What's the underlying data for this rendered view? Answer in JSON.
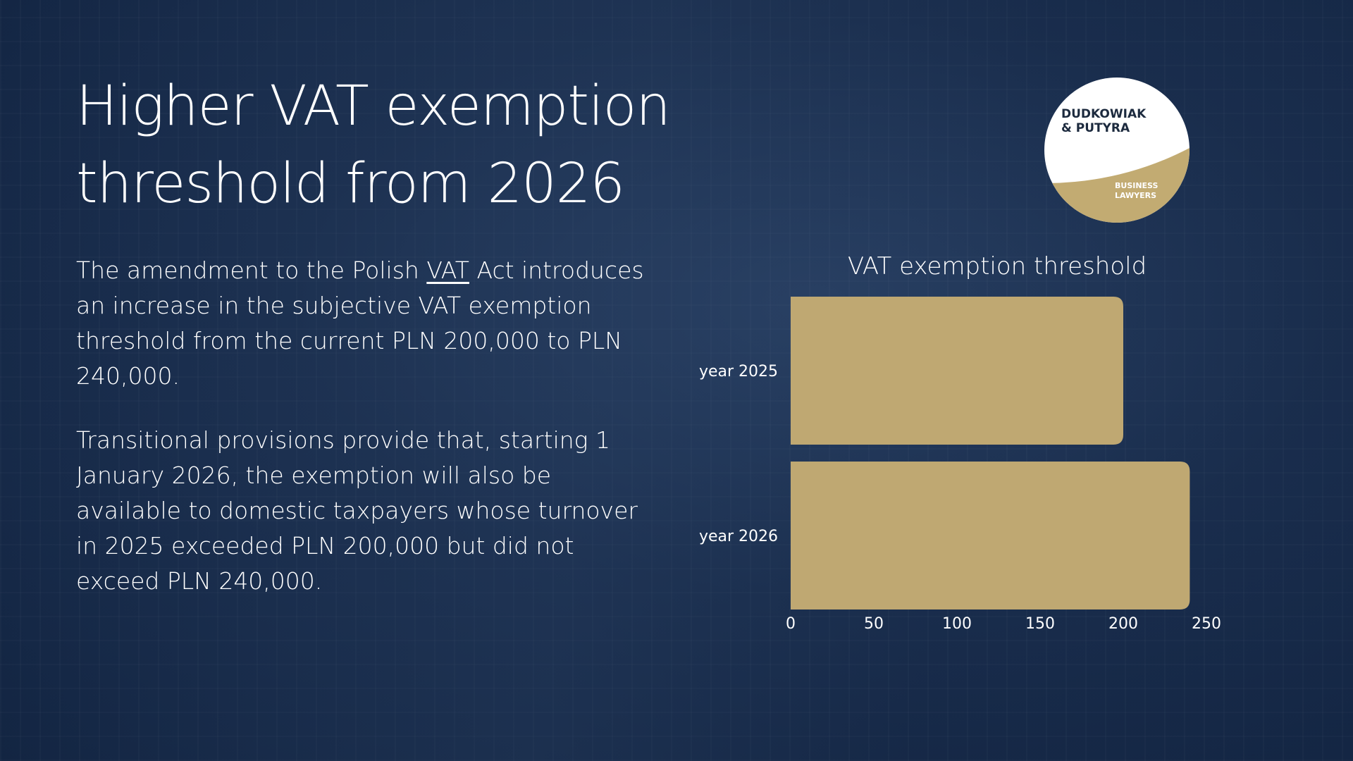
{
  "title_lines": [
    "Higher VAT exemption",
    "threshold from 2026"
  ],
  "paragraph1": {
    "before": "The amendment to the Polish ",
    "link": "VAT",
    "after": " Act introduces an increase in the subjective VAT exemption threshold from the current PLN 200,000 to PLN 240,000."
  },
  "paragraph2": "Transitional provisions provide that, starting 1 January 2026, the exemption will also be available to domestic taxpayers whose turnover in 2025 exceeded PLN 200,000 but did not exceed PLN 240,000.",
  "logo": {
    "line1": "DUDKOWIAK",
    "line2": "& PUTYRA",
    "line3": "BUSINESS",
    "line4": "LAWYERS"
  },
  "colors": {
    "bar": "#bfa872",
    "background": "#1a2e4e",
    "logo_gold": "#c2ab72",
    "logo_text": "#1c2a3e"
  },
  "chart_data": {
    "type": "bar",
    "orientation": "horizontal",
    "title": "VAT exemption threshold",
    "categories": [
      "year 2025",
      "year 2026"
    ],
    "values": [
      200,
      240
    ],
    "xlim": [
      0,
      250
    ],
    "xticks": [
      "0",
      "50",
      "100",
      "150",
      "200",
      "250"
    ],
    "grid": false
  }
}
